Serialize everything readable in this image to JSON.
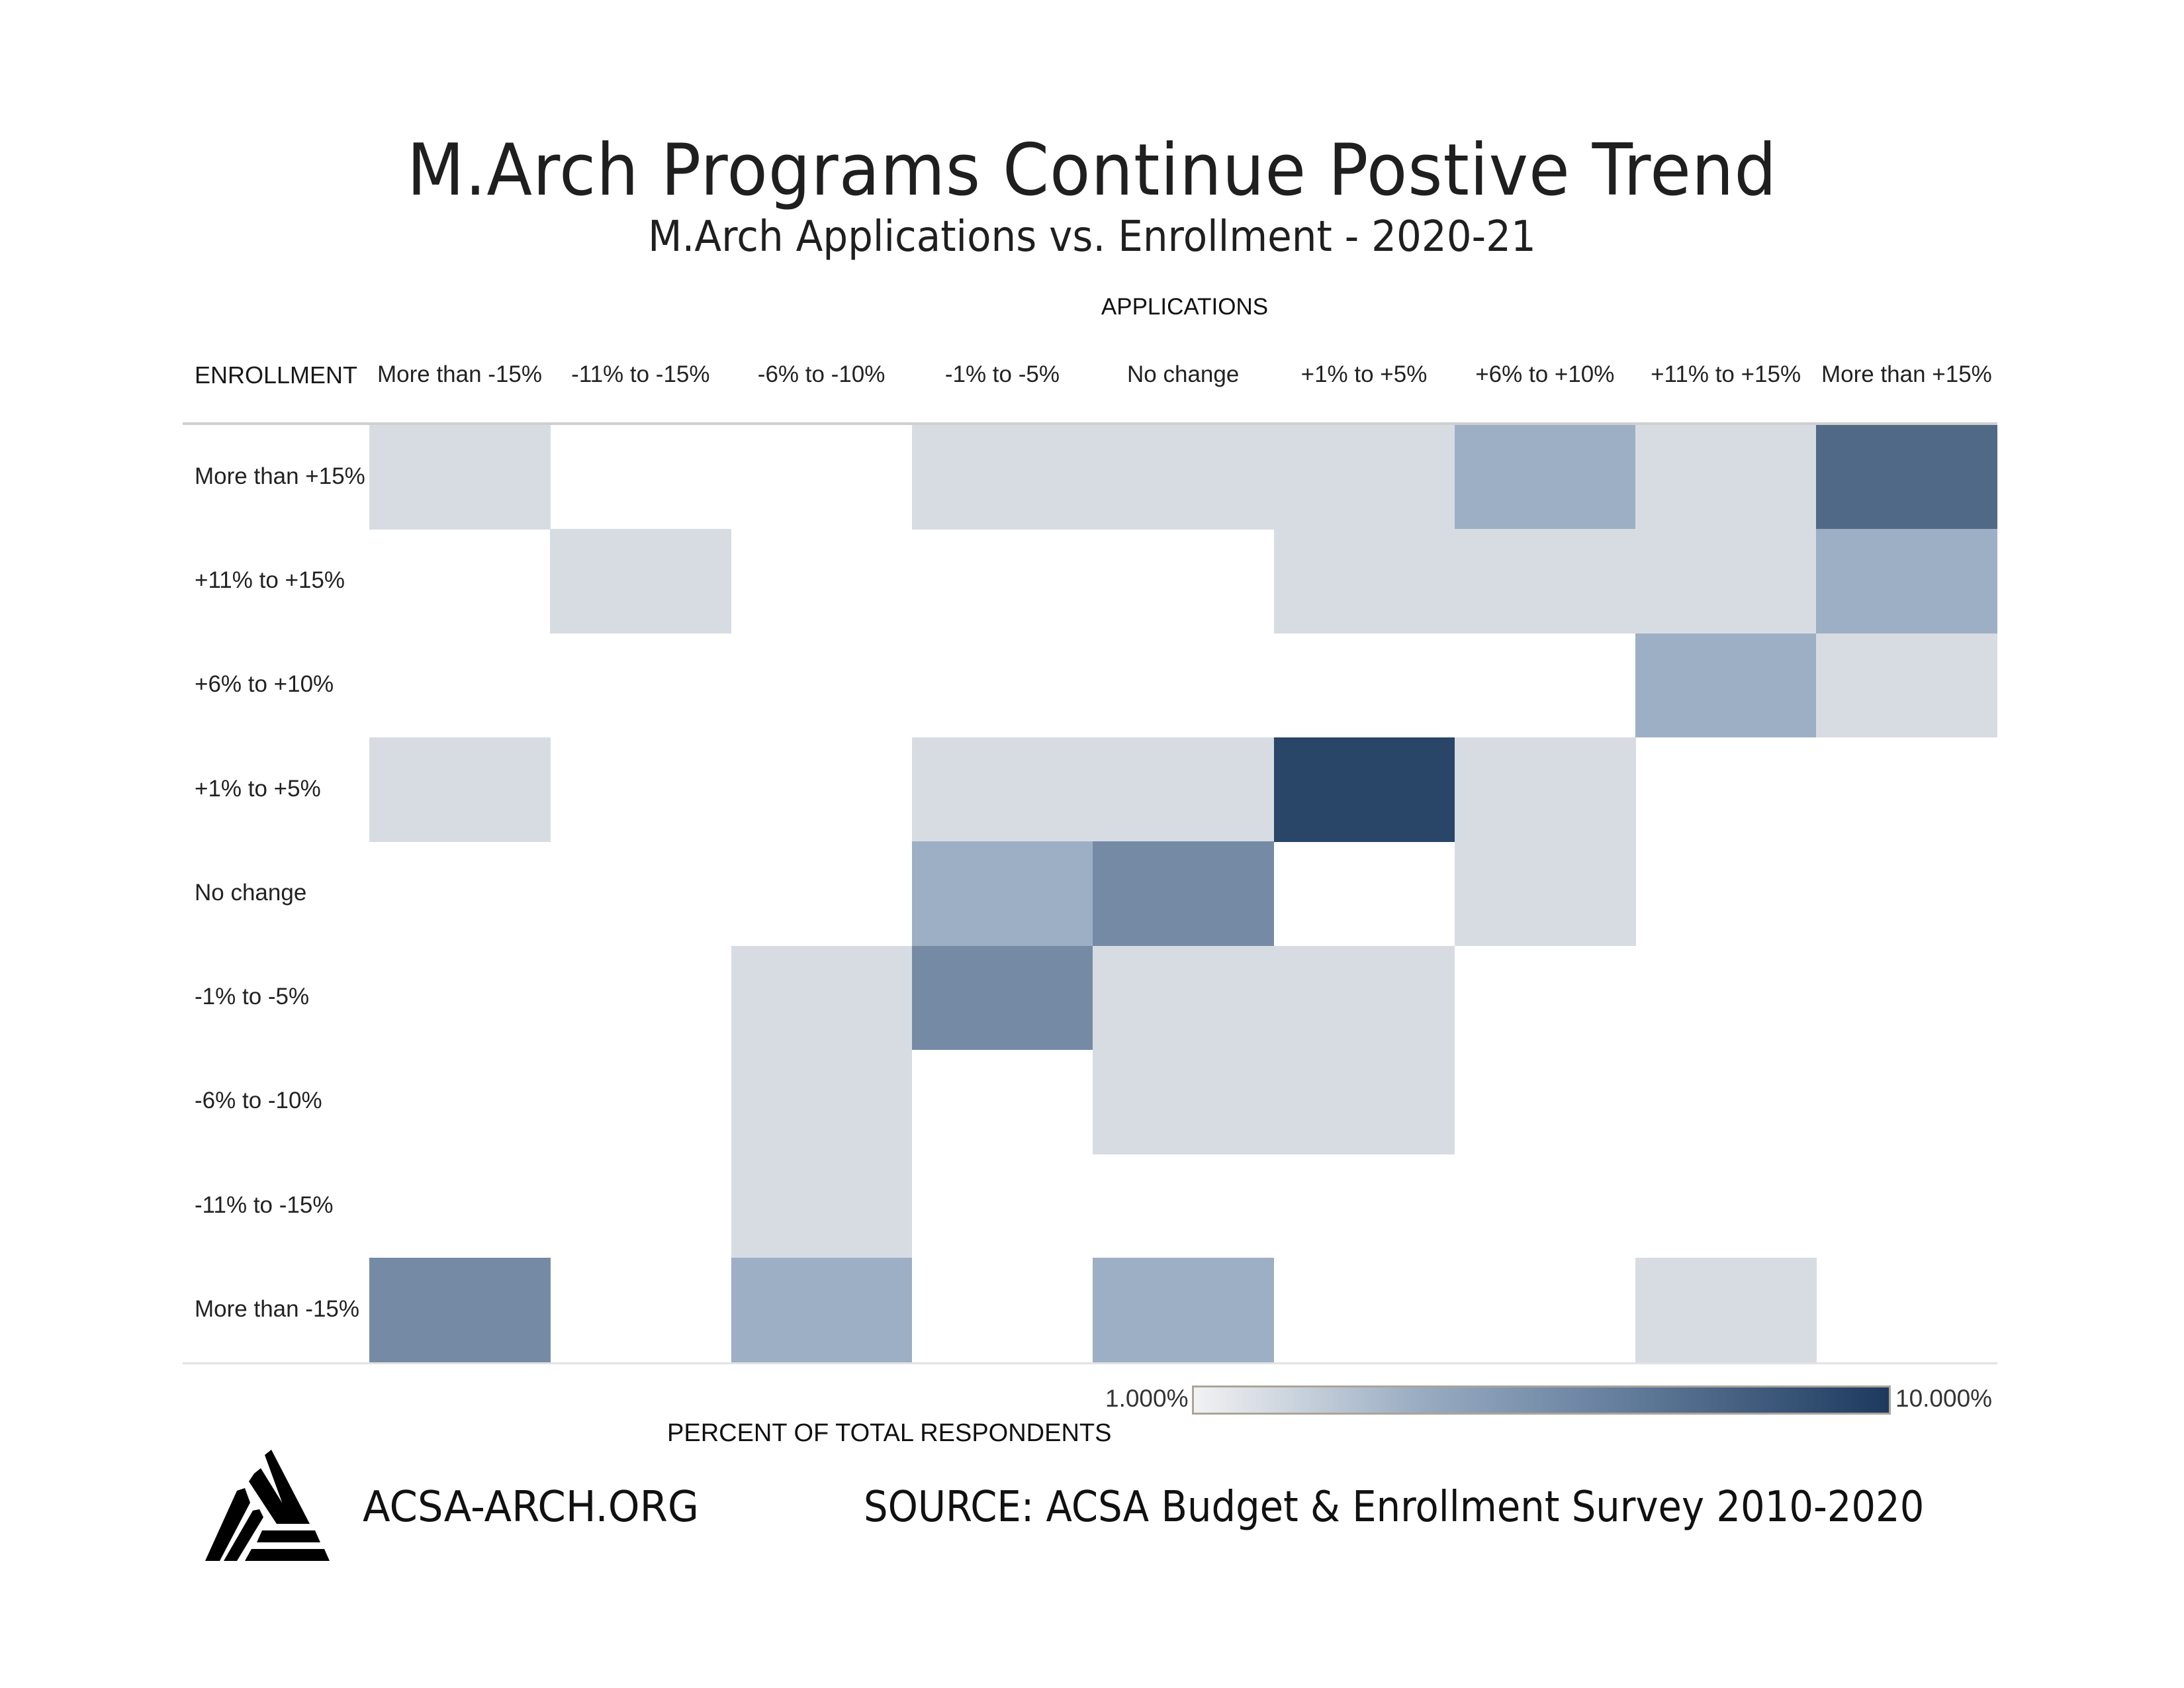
{
  "header": {
    "title": "M.Arch Programs Continue Postive Trend",
    "subtitle": "M.Arch Applications vs. Enrollment - 2020-21"
  },
  "footer": {
    "website": "ACSA-ARCH.ORG",
    "source": "SOURCE: ACSA Budget & Enrollment Survey 2010-2020",
    "logo_icon": "acsa-triangle-logo"
  },
  "colors": {
    "scale_low": "#f2f2f2",
    "scale_mid": "#98abc1",
    "scale_high": "#1d3a5e",
    "legend_border": "#aba499",
    "grid_line": "#cfcfcf"
  },
  "chart_data": {
    "type": "heatmap",
    "title": "M.Arch Programs Continue Postive Trend",
    "subtitle": "M.Arch Applications vs. Enrollment - 2020-21",
    "xlabel": "APPLICATIONS",
    "ylabel": "ENROLLMENT",
    "x_categories": [
      "More than -15%",
      "-11% to -15%",
      "-6% to -10%",
      "-1% to -5%",
      "No change",
      "+1% to +5%",
      "+6% to +10%",
      "+11% to +15%",
      "More than +15%"
    ],
    "y_categories": [
      "More than +15%",
      "+11% to +15%",
      "+6% to +10%",
      "+1% to +5%",
      "No change",
      "-1% to -5%",
      "-6% to -10%",
      "-11% to -15%",
      "More than -15%"
    ],
    "values_unit": "percent of total respondents",
    "values": [
      [
        1.9,
        null,
        null,
        1.9,
        1.9,
        1.9,
        3.8,
        1.9,
        7.5
      ],
      [
        null,
        1.9,
        null,
        null,
        null,
        1.9,
        1.9,
        1.9,
        3.8
      ],
      [
        null,
        null,
        null,
        null,
        null,
        null,
        null,
        3.8,
        1.9
      ],
      [
        1.9,
        null,
        null,
        1.9,
        1.9,
        9.4,
        1.9,
        null,
        null
      ],
      [
        null,
        null,
        null,
        3.8,
        5.7,
        null,
        1.9,
        null,
        null
      ],
      [
        null,
        null,
        1.9,
        5.7,
        1.9,
        1.9,
        null,
        null,
        null
      ],
      [
        null,
        null,
        1.9,
        null,
        1.9,
        1.9,
        null,
        null,
        null
      ],
      [
        null,
        null,
        1.9,
        null,
        null,
        null,
        null,
        null,
        null
      ],
      [
        5.7,
        null,
        3.8,
        null,
        3.8,
        null,
        null,
        1.9,
        null
      ]
    ],
    "legend": {
      "title": "PERCENT OF TOTAL RESPONDENTS",
      "min_label": "1.000%",
      "max_label": "10.000%",
      "range": [
        1,
        10
      ]
    }
  }
}
